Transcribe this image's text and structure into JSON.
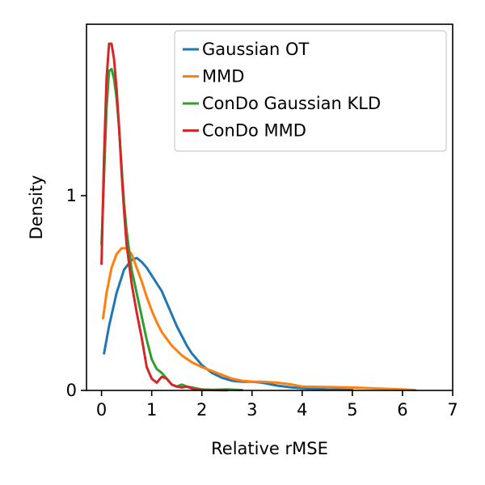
{
  "chart_data": {
    "type": "line",
    "title": "",
    "xlabel": "Relative rMSE",
    "ylabel": "Density",
    "xlim": [
      -0.3,
      7
    ],
    "ylim": [
      0,
      1.88
    ],
    "xticks": [
      0,
      1,
      2,
      3,
      4,
      5,
      6,
      7
    ],
    "yticks": [
      0,
      1
    ],
    "grid": false,
    "legend_position": "top-right",
    "series": [
      {
        "name": "Gaussian OT",
        "color": "#1f77b4",
        "x": [
          0.05,
          0.15,
          0.3,
          0.45,
          0.6,
          0.7,
          0.8,
          0.9,
          1.0,
          1.1,
          1.2,
          1.3,
          1.4,
          1.5,
          1.6,
          1.7,
          1.8,
          1.9,
          2.0,
          2.2,
          2.4,
          2.6,
          2.8,
          3.0,
          3.2,
          3.5,
          3.8,
          4.1,
          4.5,
          5.0
        ],
        "y": [
          0.19,
          0.33,
          0.5,
          0.62,
          0.67,
          0.68,
          0.66,
          0.63,
          0.59,
          0.55,
          0.51,
          0.45,
          0.39,
          0.33,
          0.28,
          0.23,
          0.19,
          0.16,
          0.13,
          0.09,
          0.065,
          0.05,
          0.045,
          0.045,
          0.04,
          0.025,
          0.015,
          0.01,
          0.005,
          0.003
        ]
      },
      {
        "name": "MMD",
        "color": "#ff7f0e",
        "x": [
          0.03,
          0.1,
          0.2,
          0.3,
          0.4,
          0.5,
          0.6,
          0.7,
          0.8,
          0.9,
          1.0,
          1.1,
          1.2,
          1.4,
          1.6,
          1.8,
          2.0,
          2.2,
          2.4,
          2.6,
          2.8,
          3.0,
          3.2,
          3.5,
          3.8,
          4.0,
          4.5,
          5.0,
          5.5,
          6.0,
          6.25
        ],
        "y": [
          0.37,
          0.5,
          0.63,
          0.7,
          0.73,
          0.73,
          0.7,
          0.63,
          0.56,
          0.48,
          0.41,
          0.35,
          0.3,
          0.23,
          0.18,
          0.145,
          0.12,
          0.1,
          0.08,
          0.06,
          0.05,
          0.045,
          0.045,
          0.04,
          0.03,
          0.02,
          0.018,
          0.015,
          0.01,
          0.005,
          0.002
        ]
      },
      {
        "name": "ConDo Gaussian KLD",
        "color": "#2ca02c",
        "x": [
          0.0,
          0.05,
          0.1,
          0.15,
          0.2,
          0.25,
          0.3,
          0.35,
          0.4,
          0.45,
          0.5,
          0.6,
          0.7,
          0.8,
          0.9,
          1.0,
          1.1,
          1.2,
          1.3,
          1.4,
          1.5,
          1.6,
          1.7,
          1.8,
          1.9,
          2.0,
          2.2,
          2.5,
          2.8
        ],
        "y": [
          0.75,
          1.1,
          1.45,
          1.64,
          1.65,
          1.6,
          1.5,
          1.35,
          1.15,
          0.96,
          0.82,
          0.62,
          0.5,
          0.38,
          0.26,
          0.16,
          0.11,
          0.09,
          0.06,
          0.03,
          0.02,
          0.03,
          0.02,
          0.015,
          0.01,
          0.005,
          0.003,
          0.005,
          0.002
        ]
      },
      {
        "name": "ConDo MMD",
        "color": "#d62728",
        "x": [
          0.0,
          0.05,
          0.1,
          0.15,
          0.2,
          0.25,
          0.3,
          0.35,
          0.4,
          0.45,
          0.5,
          0.6,
          0.7,
          0.8,
          0.9,
          1.0,
          1.1,
          1.2,
          1.3,
          1.4,
          1.5,
          1.6,
          1.7,
          1.8,
          1.9,
          2.0,
          2.2,
          2.5
        ],
        "y": [
          0.65,
          1.2,
          1.6,
          1.78,
          1.78,
          1.7,
          1.55,
          1.35,
          1.12,
          0.92,
          0.75,
          0.55,
          0.4,
          0.27,
          0.12,
          0.06,
          0.04,
          0.07,
          0.06,
          0.03,
          0.02,
          0.015,
          0.02,
          0.01,
          0.005,
          0.003,
          0.002,
          0.001
        ]
      }
    ]
  }
}
